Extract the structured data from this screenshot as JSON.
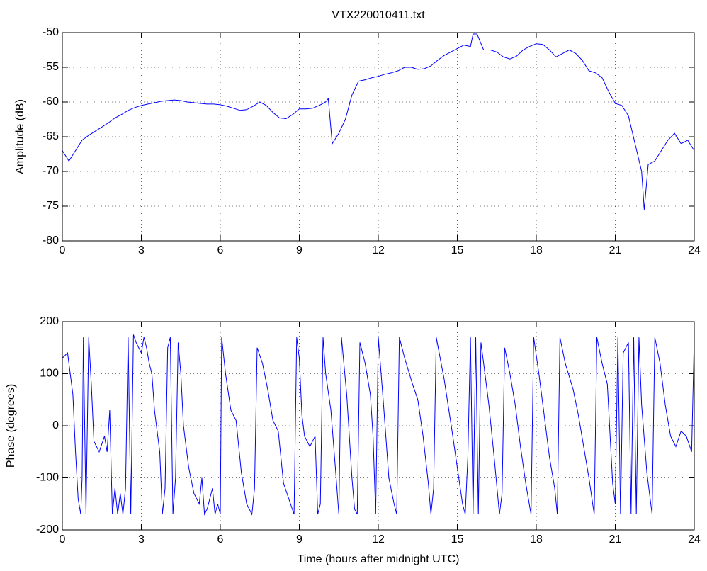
{
  "chart_data": [
    {
      "type": "line",
      "title": "VTX220010411.txt",
      "ylabel": "Amplitude (dB)",
      "xlim": [
        0,
        24
      ],
      "xticks": [
        0,
        3,
        6,
        9,
        12,
        15,
        18,
        21,
        24
      ],
      "ylim": [
        -80,
        -50
      ],
      "yticks": [
        -80,
        -75,
        -70,
        -65,
        -60,
        -55,
        -50
      ],
      "grid": true,
      "color": "#0000ff",
      "x": [
        0,
        0.25,
        0.5,
        0.75,
        1,
        1.25,
        1.5,
        1.75,
        2,
        2.25,
        2.5,
        2.75,
        3,
        3.25,
        3.5,
        3.75,
        4,
        4.25,
        4.5,
        4.75,
        5,
        5.25,
        5.5,
        5.75,
        6,
        6.25,
        6.5,
        6.75,
        7,
        7.25,
        7.5,
        7.75,
        8,
        8.25,
        8.5,
        8.75,
        9,
        9.25,
        9.5,
        9.75,
        10,
        10.1,
        10.25,
        10.5,
        10.75,
        11,
        11.25,
        11.5,
        11.75,
        12,
        12.25,
        12.5,
        12.75,
        13,
        13.25,
        13.5,
        13.75,
        14,
        14.25,
        14.5,
        14.75,
        15,
        15.25,
        15.5,
        15.6,
        15.75,
        16,
        16.25,
        16.5,
        16.75,
        17,
        17.25,
        17.5,
        17.75,
        18,
        18.25,
        18.5,
        18.75,
        19,
        19.25,
        19.5,
        19.75,
        20,
        20.25,
        20.5,
        20.75,
        21,
        21.25,
        21.5,
        21.75,
        22,
        22.1,
        22.25,
        22.5,
        22.75,
        23,
        23.25,
        23.5,
        23.75,
        24
      ],
      "values": [
        -67,
        -68.5,
        -67,
        -65.5,
        -64.8,
        -64.2,
        -63.6,
        -63,
        -62.3,
        -61.8,
        -61.2,
        -60.8,
        -60.5,
        -60.3,
        -60.1,
        -59.9,
        -59.8,
        -59.7,
        -59.8,
        -60,
        -60.1,
        -60.2,
        -60.3,
        -60.3,
        -60.4,
        -60.6,
        -60.9,
        -61.2,
        -61.1,
        -60.6,
        -60,
        -60.5,
        -61.5,
        -62.3,
        -62.4,
        -61.8,
        -61,
        -61,
        -60.9,
        -60.5,
        -60,
        -59.5,
        -66,
        -64.5,
        -62.5,
        -59,
        -57,
        -56.8,
        -56.5,
        -56.3,
        -56,
        -55.8,
        -55.5,
        -55,
        -55,
        -55.3,
        -55.2,
        -54.8,
        -54,
        -53.3,
        -52.8,
        -52.3,
        -51.8,
        -52,
        -50.2,
        -50.2,
        -52.5,
        -52.5,
        -52.8,
        -53.5,
        -53.8,
        -53.4,
        -52.5,
        -52,
        -51.6,
        -51.7,
        -52.5,
        -53.5,
        -53,
        -52.5,
        -53,
        -54,
        -55.5,
        -55.8,
        -56.5,
        -58.5,
        -60.2,
        -60.5,
        -62,
        -66,
        -70,
        -75.5,
        -69,
        -68.5,
        -67,
        -65.5,
        -64.5,
        -66,
        -65.5,
        -67
      ]
    },
    {
      "type": "line",
      "xlabel": "Time (hours after midnight UTC)",
      "ylabel": "Phase (degrees)",
      "xlim": [
        0,
        24
      ],
      "xticks": [
        0,
        3,
        6,
        9,
        12,
        15,
        18,
        21,
        24
      ],
      "ylim": [
        -200,
        200
      ],
      "yticks": [
        -200,
        -100,
        0,
        100,
        200
      ],
      "grid": true,
      "color": "#0000ff",
      "x": [
        0,
        0.2,
        0.4,
        0.5,
        0.6,
        0.7,
        0.75,
        0.8,
        0.9,
        1.0,
        1.1,
        1.2,
        1.4,
        1.6,
        1.7,
        1.8,
        1.9,
        2.0,
        2.1,
        2.2,
        2.3,
        2.4,
        2.5,
        2.6,
        2.7,
        2.8,
        3.0,
        3.1,
        3.2,
        3.3,
        3.4,
        3.5,
        3.7,
        3.8,
        3.9,
        4.0,
        4.1,
        4.2,
        4.3,
        4.4,
        4.5,
        4.6,
        4.7,
        4.8,
        5.0,
        5.2,
        5.3,
        5.4,
        5.5,
        5.7,
        5.8,
        5.9,
        6.0,
        6.05,
        6.2,
        6.4,
        6.6,
        6.8,
        7.0,
        7.2,
        7.3,
        7.4,
        7.6,
        7.8,
        8.0,
        8.2,
        8.4,
        8.6,
        8.8,
        8.9,
        9.0,
        9.1,
        9.2,
        9.4,
        9.6,
        9.7,
        9.8,
        9.9,
        10.0,
        10.2,
        10.4,
        10.5,
        10.6,
        10.8,
        11.0,
        11.1,
        11.2,
        11.3,
        11.5,
        11.7,
        11.8,
        11.9,
        12.0,
        12.2,
        12.4,
        12.6,
        12.7,
        12.8,
        13.0,
        13.3,
        13.5,
        13.7,
        13.9,
        14.0,
        14.1,
        14.2,
        14.5,
        14.8,
        15.0,
        15.2,
        15.3,
        15.4,
        15.5,
        15.6,
        15.7,
        15.8,
        15.9,
        16.0,
        16.2,
        16.4,
        16.6,
        16.7,
        16.8,
        17.0,
        17.2,
        17.4,
        17.6,
        17.8,
        17.9,
        18.1,
        18.3,
        18.5,
        18.7,
        18.8,
        18.9,
        19.1,
        19.4,
        19.6,
        19.8,
        20.0,
        20.2,
        20.3,
        20.5,
        20.7,
        20.9,
        21.0,
        21.1,
        21.2,
        21.3,
        21.5,
        21.6,
        21.7,
        21.8,
        21.9,
        22.0,
        22.2,
        22.4,
        22.5,
        22.7,
        22.9,
        23.1,
        23.3,
        23.5,
        23.7,
        23.9,
        24.0
      ],
      "values": [
        130,
        140,
        60,
        -50,
        -140,
        -170,
        -100,
        170,
        -170,
        170,
        80,
        -30,
        -50,
        -20,
        -50,
        30,
        -170,
        -120,
        -170,
        -130,
        -170,
        -120,
        170,
        -170,
        175,
        160,
        140,
        170,
        150,
        120,
        100,
        30,
        -50,
        -170,
        -120,
        150,
        170,
        -170,
        -100,
        160,
        100,
        0,
        -40,
        -80,
        -130,
        -150,
        -100,
        -170,
        -160,
        -120,
        -170,
        -150,
        -170,
        170,
        100,
        30,
        10,
        -90,
        -150,
        -170,
        -120,
        150,
        120,
        70,
        10,
        -10,
        -110,
        -140,
        -170,
        170,
        130,
        20,
        -20,
        -40,
        -20,
        -170,
        -150,
        170,
        100,
        30,
        -100,
        -170,
        170,
        60,
        -100,
        -160,
        -170,
        160,
        120,
        60,
        -20,
        -170,
        170,
        40,
        -100,
        -150,
        -170,
        170,
        130,
        80,
        50,
        -20,
        -110,
        -170,
        -120,
        170,
        90,
        -10,
        -80,
        -150,
        -170,
        -60,
        170,
        -170,
        170,
        -170,
        160,
        120,
        40,
        -60,
        -170,
        -130,
        150,
        100,
        40,
        -40,
        -110,
        -170,
        170,
        100,
        20,
        -60,
        -120,
        -170,
        170,
        120,
        70,
        20,
        -40,
        -100,
        -170,
        170,
        120,
        80,
        -110,
        -150,
        170,
        -170,
        140,
        160,
        -170,
        170,
        -170,
        170,
        40,
        -90,
        -170,
        170,
        120,
        40,
        -20,
        -40,
        -10,
        -20,
        -50,
        170
      ]
    }
  ]
}
